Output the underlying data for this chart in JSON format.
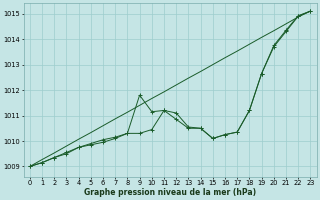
{
  "xlabel": "Graphe pression niveau de la mer (hPa)",
  "bg_color": "#c5e5e5",
  "grid_color": "#9ecece",
  "line_color": "#1a5c2a",
  "x_ticks": [
    0,
    1,
    2,
    3,
    4,
    5,
    6,
    7,
    8,
    9,
    10,
    11,
    12,
    13,
    14,
    15,
    16,
    17,
    18,
    19,
    20,
    21,
    22,
    23
  ],
  "y_ticks": [
    1009,
    1010,
    1011,
    1012,
    1013,
    1014,
    1015
  ],
  "ylim": [
    1008.6,
    1015.4
  ],
  "xlim": [
    -0.5,
    23.5
  ],
  "line1_y": [
    1009.0,
    1009.15,
    1009.35,
    1009.5,
    1009.75,
    1009.85,
    1009.95,
    1010.1,
    1010.3,
    1011.8,
    1011.15,
    1011.2,
    1010.85,
    1010.5,
    1010.5,
    1010.1,
    1010.25,
    1010.35,
    1011.2,
    1012.65,
    1013.7,
    1014.3,
    1014.9,
    1015.1
  ],
  "line2_y": [
    1009.0,
    1009.15,
    1009.35,
    1009.55,
    1009.75,
    1009.9,
    1010.05,
    1010.15,
    1010.3,
    1010.3,
    1010.45,
    1011.2,
    1011.1,
    1010.55,
    1010.5,
    1010.1,
    1010.25,
    1010.35,
    1011.2,
    1012.65,
    1013.75,
    1014.35,
    1014.92,
    1015.1
  ],
  "line3_y": [
    1009.0,
    1009.27,
    1009.53,
    1009.8,
    1010.07,
    1010.33,
    1010.6,
    1010.87,
    1011.13,
    1011.4,
    1011.67,
    1011.93,
    1012.2,
    1012.47,
    1012.73,
    1013.0,
    1013.27,
    1013.53,
    1013.8,
    1014.07,
    1014.33,
    1014.6,
    1014.87,
    1015.1
  ],
  "xlabel_fontsize": 5.5,
  "tick_fontsize": 4.8,
  "lw": 0.7,
  "ms": 2.5
}
